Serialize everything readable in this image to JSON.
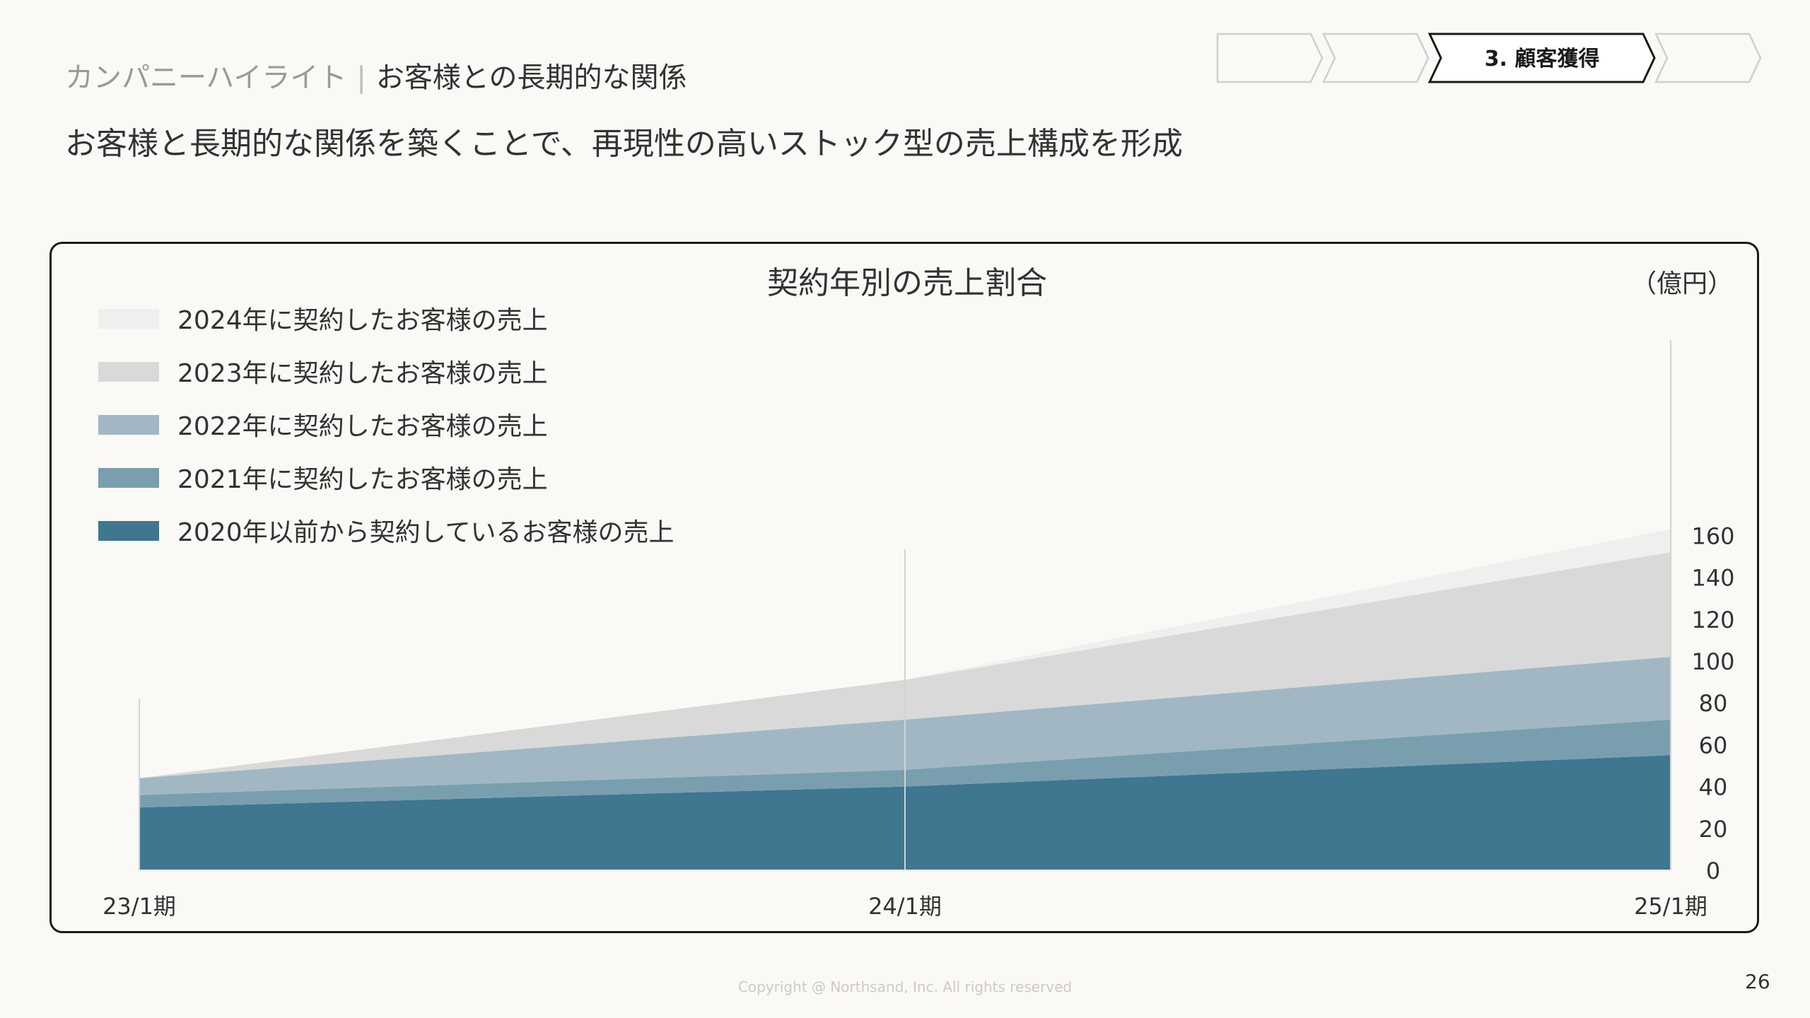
{
  "header": {
    "section": "カンパニーハイライト",
    "separator": "|",
    "topic": "お客様との長期的な関係",
    "headline": "お客様と長期的な関係を築くことで、再現性の高いストック型の売上構成を形成"
  },
  "steps": {
    "items": [
      "",
      "",
      "3. 顧客獲得",
      ""
    ],
    "active_index": 2
  },
  "colors": {
    "background": "#fbf9f5",
    "series": [
      "#3f7690",
      "#799fae",
      "#a1b8c4",
      "#d9d9d9",
      "#efefef"
    ],
    "frame": "#1a1a1a"
  },
  "chart_data": {
    "type": "area",
    "stacked": true,
    "title": "契約年別の売上割合",
    "unit_label": "（億円）",
    "categories": [
      "23/1期",
      "24/1期",
      "25/1期"
    ],
    "series": [
      {
        "name": "2020年以前から契約しているお客様の売上",
        "values": [
          30,
          40,
          55
        ]
      },
      {
        "name": "2021年に契約したお客様の売上",
        "values": [
          6,
          8,
          17
        ]
      },
      {
        "name": "2022年に契約したお客様の売上",
        "values": [
          8,
          24,
          30
        ]
      },
      {
        "name": "2023年に契約したお客様の売上",
        "values": [
          0,
          19,
          50
        ]
      },
      {
        "name": "2024年に契約したお客様の売上",
        "values": [
          0,
          0,
          11
        ]
      }
    ],
    "yticks": [
      0,
      20,
      40,
      60,
      80,
      100,
      120,
      140,
      160
    ],
    "ylim": [
      0,
      172
    ],
    "axis_side": "right",
    "legend_position": "top-left",
    "legend_order": "reverse"
  },
  "footer": {
    "copyright": "Copyright @ Northsand, Inc. All rights reserved",
    "page_number": "26"
  }
}
